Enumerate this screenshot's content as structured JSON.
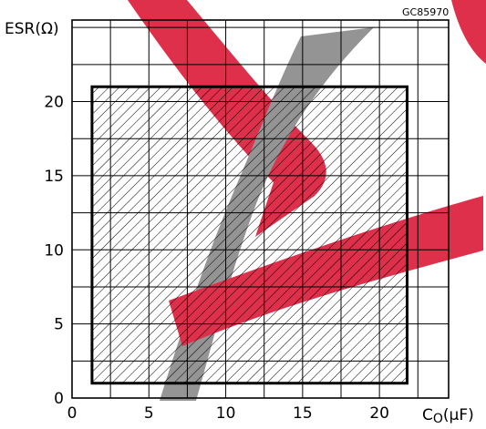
{
  "chart_data": {
    "type": "area",
    "reference_code": "GC85970",
    "ylabel": "ESR(Ω)",
    "xlabel_main": "C",
    "xlabel_sub": "O",
    "xlabel_unit": "(μF)",
    "xlim": [
      0,
      24.5
    ],
    "ylim": [
      0,
      25.5
    ],
    "x_ticks": [
      0,
      5,
      10,
      15,
      20
    ],
    "y_ticks": [
      0,
      5,
      10,
      15,
      20
    ],
    "x_grid_step": 2.5,
    "y_grid_step": 2.5,
    "grid": true,
    "stable_region": {
      "x": [
        1.3,
        21.8
      ],
      "y": [
        1,
        21
      ]
    },
    "watermark_colors": {
      "red": "#dc1e3c",
      "gray": "#8c8c8c"
    }
  }
}
